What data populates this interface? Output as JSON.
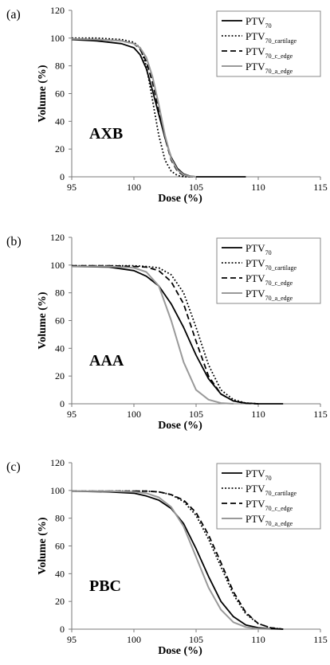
{
  "chart_data": [
    {
      "panel_label": "(a)",
      "type": "line",
      "annotation": "AXB",
      "xlabel": "Dose (%)",
      "ylabel": "Volume (%)",
      "xlim": [
        95,
        115
      ],
      "ylim": [
        0,
        120
      ],
      "xticks": [
        95,
        100,
        105,
        110,
        115
      ],
      "yticks": [
        0,
        20,
        40,
        60,
        80,
        100,
        120
      ],
      "grid": false,
      "legend_position": "top-right",
      "series": [
        {
          "name": "PTV70",
          "legend_base": "PTV",
          "legend_sub": "70",
          "style": "solid",
          "color": "#000000",
          "x": [
            95,
            97,
            99,
            100,
            100.5,
            101,
            101.5,
            102,
            102.5,
            103,
            103.5,
            104,
            104.5,
            105,
            106,
            107,
            108,
            109
          ],
          "y": [
            99,
            98,
            96,
            93,
            88,
            78,
            62,
            45,
            28,
            14,
            6,
            2,
            0.5,
            0,
            0,
            0,
            0,
            0
          ]
        },
        {
          "name": "PTV70_cartilage",
          "legend_base": "PTV",
          "legend_sub": "70_cartilage",
          "style": "dotted",
          "color": "#000000",
          "x": [
            95,
            97,
            99,
            100,
            100.5,
            101,
            101.5,
            102,
            102.5,
            103,
            103.5,
            104,
            104.5,
            105
          ],
          "y": [
            100,
            100,
            99,
            97,
            93,
            80,
            55,
            30,
            12,
            4,
            1,
            0,
            0,
            0
          ]
        },
        {
          "name": "PTV70_c_edge",
          "legend_base": "PTV",
          "legend_sub": "70_c_edge",
          "style": "dashed",
          "color": "#000000",
          "x": [
            95,
            97,
            99,
            100,
            100.5,
            101,
            101.5,
            102,
            102.5,
            103,
            103.5,
            104,
            104.5,
            105
          ],
          "y": [
            99.5,
            99,
            98,
            96,
            92,
            83,
            68,
            48,
            28,
            12,
            4,
            1,
            0,
            0
          ]
        },
        {
          "name": "PTV70_a_edge",
          "legend_base": "PTV",
          "legend_sub": "70_a_edge",
          "style": "solid",
          "color": "#999999",
          "x": [
            95,
            97,
            99,
            100,
            100.5,
            101,
            101.5,
            102,
            102.5,
            103,
            103.5,
            104,
            104.5,
            105
          ],
          "y": [
            99.5,
            99,
            98,
            96,
            93,
            86,
            72,
            52,
            30,
            13,
            5,
            1.5,
            0.3,
            0
          ]
        }
      ]
    },
    {
      "panel_label": "(b)",
      "type": "line",
      "annotation": "AAA",
      "xlabel": "Dose (%)",
      "ylabel": "Volume (%)",
      "xlim": [
        95,
        115
      ],
      "ylim": [
        0,
        120
      ],
      "xticks": [
        95,
        100,
        105,
        110,
        115
      ],
      "yticks": [
        0,
        20,
        40,
        60,
        80,
        100,
        120
      ],
      "grid": false,
      "legend_position": "top-right",
      "series": [
        {
          "name": "PTV70",
          "legend_base": "PTV",
          "legend_sub": "70",
          "style": "solid",
          "color": "#000000",
          "x": [
            95,
            98,
            100,
            101,
            102,
            103,
            104,
            105,
            106,
            107,
            108,
            109,
            110,
            111,
            112
          ],
          "y": [
            99,
            98.5,
            96,
            92,
            85,
            72,
            55,
            35,
            18,
            7,
            2,
            0.5,
            0,
            0,
            0
          ]
        },
        {
          "name": "PTV70_cartilage",
          "legend_base": "PTV",
          "legend_sub": "70_cartilage",
          "style": "dotted",
          "color": "#000000",
          "x": [
            95,
            98,
            100,
            101,
            102,
            103,
            104,
            105,
            106,
            107,
            108,
            109,
            110
          ],
          "y": [
            99.5,
            99.5,
            99.5,
            99,
            98,
            93,
            80,
            55,
            28,
            10,
            3,
            0.5,
            0
          ]
        },
        {
          "name": "PTV70_c_edge",
          "legend_base": "PTV",
          "legend_sub": "70_c_edge",
          "style": "dashed",
          "color": "#000000",
          "x": [
            95,
            98,
            100,
            101,
            102,
            103,
            104,
            105,
            106,
            107,
            108,
            109,
            110
          ],
          "y": [
            99.5,
            99.5,
            99,
            98.5,
            96,
            88,
            72,
            45,
            20,
            7,
            2,
            0.3,
            0
          ]
        },
        {
          "name": "PTV70_a_edge",
          "legend_base": "PTV",
          "legend_sub": "70_a_edge",
          "style": "solid",
          "color": "#999999",
          "x": [
            95,
            98,
            100,
            101,
            102,
            103,
            104,
            105,
            106,
            107,
            108
          ],
          "y": [
            99,
            99,
            98,
            95,
            85,
            60,
            30,
            10,
            3,
            0.5,
            0
          ]
        }
      ]
    },
    {
      "panel_label": "(c)",
      "type": "line",
      "annotation": "PBC",
      "xlabel": "Dose (%)",
      "ylabel": "Volume (%)",
      "xlim": [
        95,
        115
      ],
      "ylim": [
        0,
        120
      ],
      "xticks": [
        95,
        100,
        105,
        110,
        115
      ],
      "yticks": [
        0,
        20,
        40,
        60,
        80,
        100,
        120
      ],
      "grid": false,
      "legend_position": "top-right",
      "series": [
        {
          "name": "PTV70",
          "legend_base": "PTV",
          "legend_sub": "70",
          "style": "solid",
          "color": "#000000",
          "x": [
            95,
            98,
            100,
            101,
            102,
            103,
            104,
            105,
            106,
            107,
            108,
            109,
            110,
            111,
            112
          ],
          "y": [
            99.5,
            99,
            98,
            96,
            93,
            87,
            76,
            58,
            38,
            20,
            9,
            3,
            1,
            0.3,
            0
          ]
        },
        {
          "name": "PTV70_cartilage",
          "legend_base": "PTV",
          "legend_sub": "70_cartilage",
          "style": "dotted",
          "color": "#000000",
          "x": [
            95,
            98,
            100,
            101,
            102,
            103,
            104,
            105,
            106,
            107,
            108,
            109,
            110,
            111,
            112
          ],
          "y": [
            99.5,
            99.5,
            99.5,
            99.5,
            99,
            97,
            92,
            82,
            65,
            45,
            25,
            11,
            4,
            1,
            0
          ]
        },
        {
          "name": "PTV70_c_edge",
          "legend_base": "PTV",
          "legend_sub": "70_c_edge",
          "style": "dashed",
          "color": "#000000",
          "x": [
            95,
            98,
            100,
            101,
            102,
            103,
            104,
            105,
            106,
            107,
            108,
            109,
            110,
            111,
            112
          ],
          "y": [
            99.5,
            99.5,
            99.5,
            99.5,
            99,
            97,
            93,
            84,
            68,
            48,
            27,
            12,
            4,
            1,
            0
          ]
        },
        {
          "name": "PTV70_a_edge",
          "legend_base": "PTV",
          "legend_sub": "70_a_edge",
          "style": "solid",
          "color": "#999999",
          "x": [
            95,
            98,
            100,
            101,
            102,
            103,
            104,
            105,
            106,
            107,
            108,
            109,
            110,
            111
          ],
          "y": [
            99.5,
            99.5,
            99,
            98,
            95,
            88,
            74,
            52,
            30,
            14,
            5,
            1.5,
            0.3,
            0
          ]
        }
      ]
    }
  ]
}
